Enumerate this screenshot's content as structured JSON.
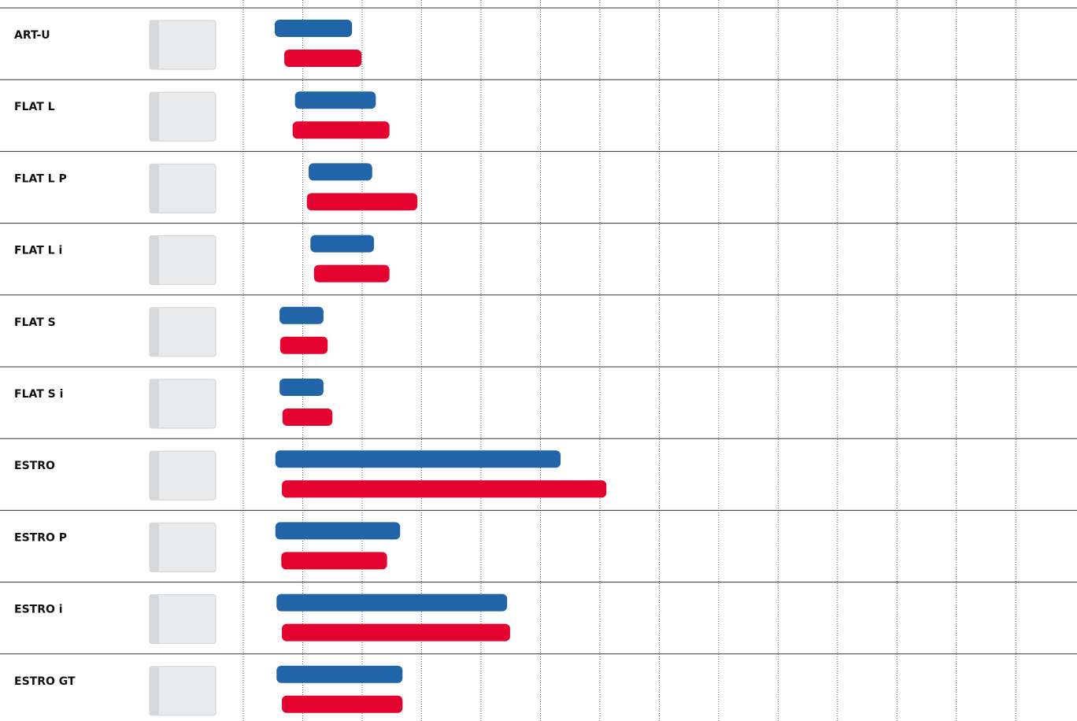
{
  "chart_data": {
    "type": "range-bar",
    "categories": [
      "ART-U",
      "FLAT L",
      "FLAT L P",
      "FLAT L i",
      "FLAT S",
      "FLAT S i",
      "ESTRO",
      "ESTRO P",
      "ESTRO i",
      "ESTRO GT"
    ],
    "series": [
      {
        "color": "#2264a8",
        "values": [
          [
            0.53,
            1.83
          ],
          [
            0.87,
            2.23
          ],
          [
            1.1,
            2.17
          ],
          [
            1.13,
            2.2
          ],
          [
            0.61,
            1.35
          ],
          [
            0.61,
            1.35
          ],
          [
            0.54,
            5.34
          ],
          [
            0.54,
            2.64
          ],
          [
            0.56,
            4.44
          ],
          [
            0.56,
            2.68
          ]
        ]
      },
      {
        "color": "#e4032e",
        "values": [
          [
            0.69,
            1.99
          ],
          [
            0.83,
            2.46
          ],
          [
            1.07,
            2.93
          ],
          [
            1.19,
            2.46
          ],
          [
            0.62,
            1.42
          ],
          [
            0.66,
            1.5
          ],
          [
            0.65,
            6.11
          ],
          [
            0.64,
            2.42
          ],
          [
            0.65,
            4.49
          ],
          [
            0.65,
            2.68
          ]
        ]
      }
    ],
    "xlim": [
      0,
      14.03
    ],
    "xticks": [
      0,
      1,
      2,
      3,
      4,
      5,
      6,
      7,
      8,
      9,
      10,
      11,
      12,
      13
    ],
    "grid": true
  }
}
